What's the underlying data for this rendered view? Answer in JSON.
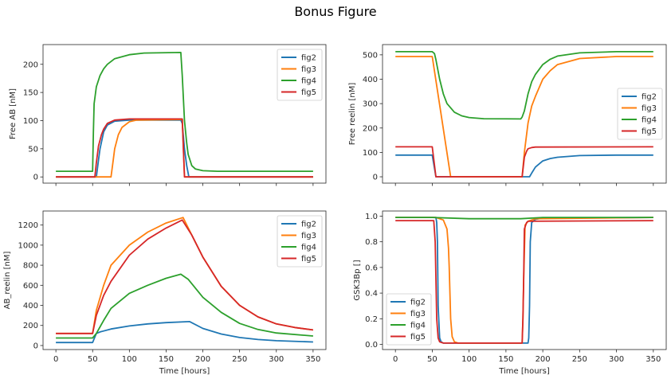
{
  "title": "Bonus Figure",
  "colors": {
    "fig2": "#1f77b4",
    "fig3": "#ff7f0e",
    "fig4": "#2ca02c",
    "fig5": "#d62728"
  },
  "chart_data": [
    {
      "type": "line",
      "ylabel": "Free AB [nM]",
      "xlabel": "",
      "xlim": [
        -17.5,
        367.5
      ],
      "ylim": [
        -11,
        235
      ],
      "xticks": [
        0,
        50,
        100,
        150,
        200,
        250,
        300,
        350
      ],
      "show_xticklabels": false,
      "yticks": [
        0,
        50,
        100,
        150,
        200
      ],
      "legend": "upper-right",
      "series": [
        {
          "name": "fig2",
          "x": [
            0,
            55,
            58,
            60,
            65,
            70,
            80,
            100,
            170,
            172,
            175,
            178,
            181,
            350
          ],
          "y": [
            0,
            0,
            30,
            50,
            80,
            92,
            99,
            101,
            101,
            95,
            50,
            20,
            0,
            0
          ]
        },
        {
          "name": "fig3",
          "x": [
            0,
            75,
            78,
            80,
            85,
            90,
            100,
            110,
            170,
            172,
            175,
            350
          ],
          "y": [
            0,
            0,
            30,
            50,
            75,
            88,
            98,
            101,
            102,
            102,
            0,
            0
          ]
        },
        {
          "name": "fig4",
          "x": [
            0,
            50,
            51,
            52,
            55,
            60,
            65,
            70,
            80,
            100,
            120,
            170,
            172,
            175,
            178,
            180,
            185,
            190,
            200,
            220,
            350
          ],
          "y": [
            10,
            10,
            80,
            130,
            160,
            180,
            192,
            200,
            210,
            217,
            220,
            221,
            180,
            100,
            60,
            40,
            20,
            14,
            11,
            10,
            10
          ]
        },
        {
          "name": "fig5",
          "x": [
            0,
            53,
            55,
            58,
            62,
            65,
            70,
            80,
            100,
            170,
            172,
            175,
            350
          ],
          "y": [
            0,
            0,
            25,
            55,
            75,
            85,
            95,
            101,
            103,
            103,
            103,
            0,
            0
          ]
        }
      ]
    },
    {
      "type": "line",
      "ylabel": "Free reelin [nM]",
      "xlabel": "",
      "xlim": [
        -17.5,
        367.5
      ],
      "ylim": [
        -26,
        542
      ],
      "xticks": [
        0,
        50,
        100,
        150,
        200,
        250,
        300,
        350
      ],
      "show_xticklabels": false,
      "yticks": [
        0,
        100,
        200,
        300,
        400,
        500
      ],
      "legend": "center-right",
      "series": [
        {
          "name": "fig2",
          "x": [
            0,
            50,
            55,
            182,
            185,
            190,
            200,
            210,
            220,
            250,
            300,
            350
          ],
          "y": [
            89,
            89,
            0,
            0,
            15,
            40,
            65,
            75,
            80,
            87,
            89,
            89
          ]
        },
        {
          "name": "fig3",
          "x": [
            0,
            50,
            75,
            172,
            175,
            180,
            185,
            190,
            200,
            210,
            220,
            250,
            300,
            350
          ],
          "y": [
            493,
            493,
            0,
            0,
            100,
            220,
            290,
            330,
            400,
            435,
            460,
            485,
            493,
            493
          ]
        },
        {
          "name": "fig4",
          "x": [
            0,
            50,
            53,
            55,
            60,
            65,
            70,
            80,
            90,
            100,
            120,
            170,
            172,
            175,
            180,
            185,
            190,
            200,
            210,
            220,
            250,
            300,
            350
          ],
          "y": [
            513,
            513,
            505,
            480,
            400,
            340,
            300,
            265,
            250,
            243,
            238,
            237,
            245,
            270,
            340,
            390,
            420,
            460,
            482,
            495,
            508,
            513,
            513
          ]
        },
        {
          "name": "fig5",
          "x": [
            0,
            50,
            55,
            172,
            175,
            178,
            180,
            185,
            190,
            350
          ],
          "y": [
            123,
            123,
            0,
            0,
            80,
            105,
            115,
            120,
            122,
            123
          ]
        }
      ]
    },
    {
      "type": "line",
      "ylabel": "AB_reelin [nM]",
      "xlabel": "Time [hours]",
      "xlim": [
        -17.5,
        367.5
      ],
      "ylim": [
        -40,
        1340
      ],
      "xticks": [
        0,
        50,
        100,
        150,
        200,
        250,
        300,
        350
      ],
      "show_xticklabels": true,
      "yticks": [
        0,
        200,
        400,
        600,
        800,
        1000,
        1200
      ],
      "legend": "upper-right",
      "series": [
        {
          "name": "fig2",
          "x": [
            0,
            50,
            55,
            60,
            75,
            100,
            125,
            150,
            182,
            200,
            225,
            250,
            275,
            300,
            350
          ],
          "y": [
            30,
            30,
            120,
            135,
            165,
            195,
            215,
            228,
            238,
            170,
            115,
            80,
            60,
            48,
            35
          ]
        },
        {
          "name": "fig3",
          "x": [
            0,
            50,
            55,
            65,
            75,
            100,
            125,
            150,
            173,
            185,
            200,
            225,
            250,
            275,
            300,
            325,
            350
          ],
          "y": [
            120,
            120,
            350,
            600,
            800,
            1000,
            1130,
            1220,
            1275,
            1100,
            880,
            590,
            400,
            285,
            215,
            180,
            155
          ]
        },
        {
          "name": "fig4",
          "x": [
            0,
            50,
            55,
            65,
            75,
            100,
            125,
            150,
            170,
            180,
            200,
            225,
            250,
            275,
            300,
            350
          ],
          "y": [
            75,
            75,
            120,
            250,
            370,
            520,
            600,
            670,
            710,
            660,
            480,
            330,
            220,
            160,
            125,
            95
          ]
        },
        {
          "name": "fig5",
          "x": [
            0,
            50,
            55,
            65,
            75,
            100,
            125,
            150,
            172,
            185,
            200,
            225,
            250,
            275,
            300,
            325,
            350
          ],
          "y": [
            120,
            120,
            300,
            500,
            640,
            900,
            1060,
            1170,
            1250,
            1100,
            880,
            590,
            400,
            285,
            215,
            180,
            155
          ]
        }
      ]
    },
    {
      "type": "line",
      "ylabel": "GSK3Bp []",
      "xlabel": "Time [hours]",
      "xlim": [
        -17.5,
        367.5
      ],
      "ylim": [
        -0.04,
        1.04
      ],
      "xticks": [
        0,
        50,
        100,
        150,
        200,
        250,
        300,
        350
      ],
      "show_xticklabels": true,
      "yticks": [
        "0.0",
        "0.2",
        "0.4",
        "0.6",
        "0.8",
        "1.0"
      ],
      "legend": "lower-left",
      "series": [
        {
          "name": "fig2",
          "x": [
            0,
            55,
            56,
            57,
            58,
            60,
            62,
            65,
            180,
            181,
            182,
            183,
            185,
            190,
            200,
            350
          ],
          "y": [
            0.99,
            0.99,
            0.95,
            0.8,
            0.3,
            0.05,
            0.02,
            0.01,
            0.01,
            0.05,
            0.3,
            0.8,
            0.95,
            0.975,
            0.985,
            0.99
          ]
        },
        {
          "name": "fig3",
          "x": [
            0,
            55,
            65,
            70,
            72,
            73,
            75,
            77,
            80,
            85,
            172,
            173,
            174,
            176,
            180,
            190,
            350
          ],
          "y": [
            0.99,
            0.99,
            0.97,
            0.9,
            0.75,
            0.6,
            0.2,
            0.06,
            0.02,
            0.01,
            0.01,
            0.2,
            0.5,
            0.93,
            0.96,
            0.98,
            0.99
          ]
        },
        {
          "name": "fig4",
          "x": [
            0,
            50,
            100,
            170,
            200,
            350
          ],
          "y": [
            0.99,
            0.99,
            0.98,
            0.98,
            0.99,
            0.99
          ]
        },
        {
          "name": "fig5",
          "x": [
            0,
            52,
            54,
            56,
            58,
            60,
            65,
            172,
            173,
            174,
            175,
            178,
            180,
            350
          ],
          "y": [
            0.965,
            0.965,
            0.8,
            0.2,
            0.05,
            0.02,
            0.01,
            0.01,
            0.2,
            0.5,
            0.9,
            0.95,
            0.96,
            0.965
          ]
        }
      ]
    }
  ]
}
